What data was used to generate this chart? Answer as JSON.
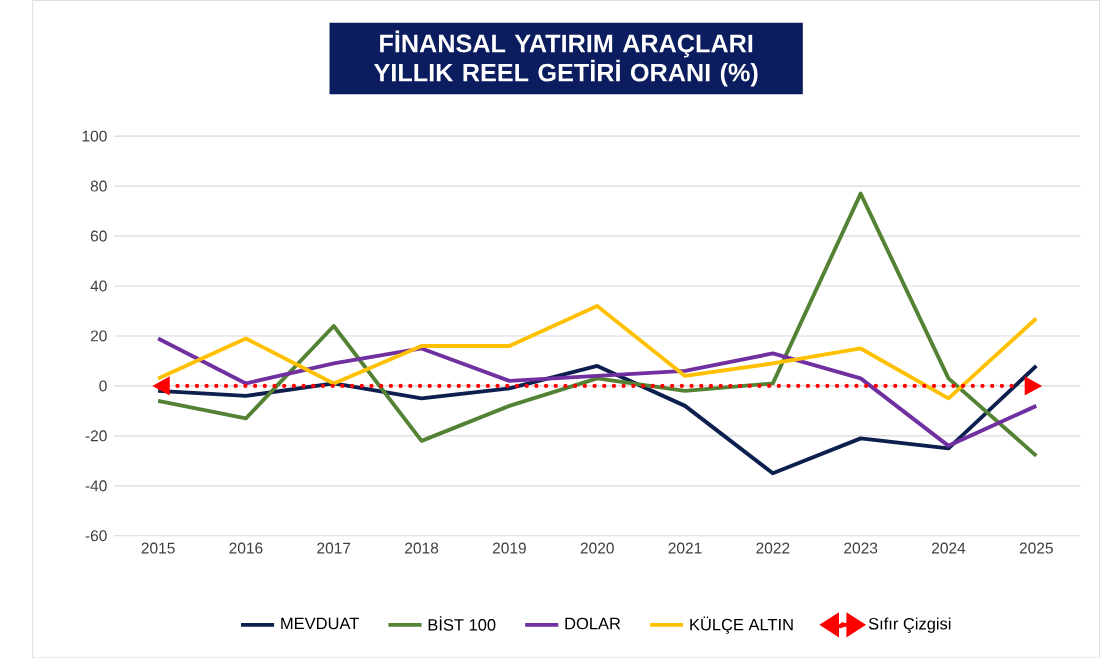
{
  "chart_data": {
    "type": "line",
    "title": "FİNANSAL YATIRIM ARAÇLARI YILLIK REEL GETİRİ ORANI (%)",
    "categories": [
      "2015",
      "2016",
      "2017",
      "2018",
      "2019",
      "2020",
      "2021",
      "2022",
      "2023",
      "2024",
      "2025"
    ],
    "series": [
      {
        "name": "MEVDUAT",
        "color": "#0d1f4f",
        "values": [
          -2,
          -4,
          1,
          -5,
          -1,
          8,
          -8,
          -35,
          -21,
          -25,
          8
        ]
      },
      {
        "name": "BİST 100",
        "color": "#548235",
        "values": [
          -6,
          -13,
          24,
          -22,
          -8,
          3,
          -2,
          1,
          77,
          3,
          -28
        ]
      },
      {
        "name": "DOLAR",
        "color": "#7030a0",
        "values": [
          19,
          1,
          9,
          15,
          2,
          4,
          6,
          13,
          3,
          -24,
          -8
        ]
      },
      {
        "name": "KÜLÇE ALTIN",
        "color": "#ffc000",
        "values": [
          3,
          19,
          1,
          16,
          16,
          32,
          4,
          9,
          15,
          -5,
          27
        ]
      }
    ],
    "ref_lines": [
      {
        "axis": "y",
        "value": 0,
        "label": "Sıfır Çizgisi",
        "color": "#ff0000",
        "line_style": "dotted"
      }
    ],
    "ylim": [
      -60,
      100
    ],
    "yticks": [
      -60,
      -40,
      -20,
      0,
      20,
      40,
      60,
      80,
      100
    ],
    "grid": "y",
    "legend": "bottom",
    "marker": "none",
    "line_style": "solid"
  }
}
